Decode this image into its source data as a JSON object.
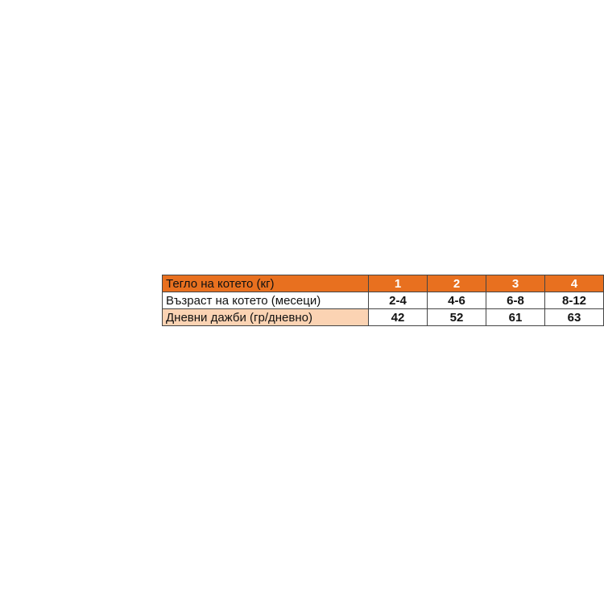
{
  "colors": {
    "header": "#E8701F",
    "label_highlight": "#FBD3B3"
  },
  "table": {
    "header": {
      "label": "Тегло на котето (кг)",
      "values": [
        "1",
        "2",
        "3",
        "4"
      ]
    },
    "rows": [
      {
        "label": "Възраст на котето (месеци)",
        "values": [
          "2-4",
          "4-6",
          "6-8",
          "8-12"
        ]
      },
      {
        "label": "Дневни дажби (гр/дневно)",
        "values": [
          "42",
          "52",
          "61",
          "63"
        ]
      }
    ]
  }
}
